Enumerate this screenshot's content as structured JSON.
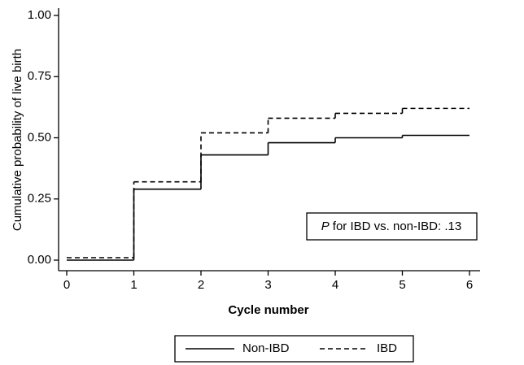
{
  "chart_data": {
    "type": "step",
    "x_label": "Cycle number",
    "y_label": "Cumulative probability of live birth",
    "annotation": [
      "P",
      "for IBD vs. non-IBD: .13"
    ],
    "x": [
      0,
      1,
      2,
      3,
      4,
      5
    ],
    "series": [
      {
        "name": "Non-IBD",
        "color": "#000000",
        "dash": "solid",
        "values": [
          0,
          0.29,
          0.43,
          0.48,
          0.5,
          0.51
        ]
      },
      {
        "name": "IBD",
        "color": "#000000",
        "dash": "dashed",
        "values": [
          0.01,
          0.32,
          0.52,
          0.58,
          0.6,
          0.62
        ]
      }
    ],
    "xlim": [
      0,
      6
    ],
    "xticks": [
      0,
      1,
      2,
      3,
      4,
      5,
      6
    ],
    "ylim": [
      0,
      1
    ],
    "yticks": [
      {
        "value": 0,
        "label": "0.00"
      },
      {
        "value": 0.25,
        "label": "0.25"
      },
      {
        "value": 0.5,
        "label": "0.50"
      },
      {
        "value": 0.75,
        "label": "0.75"
      },
      {
        "value": 1,
        "label": "1.00"
      }
    ],
    "grid": false,
    "legend": "bottom"
  }
}
